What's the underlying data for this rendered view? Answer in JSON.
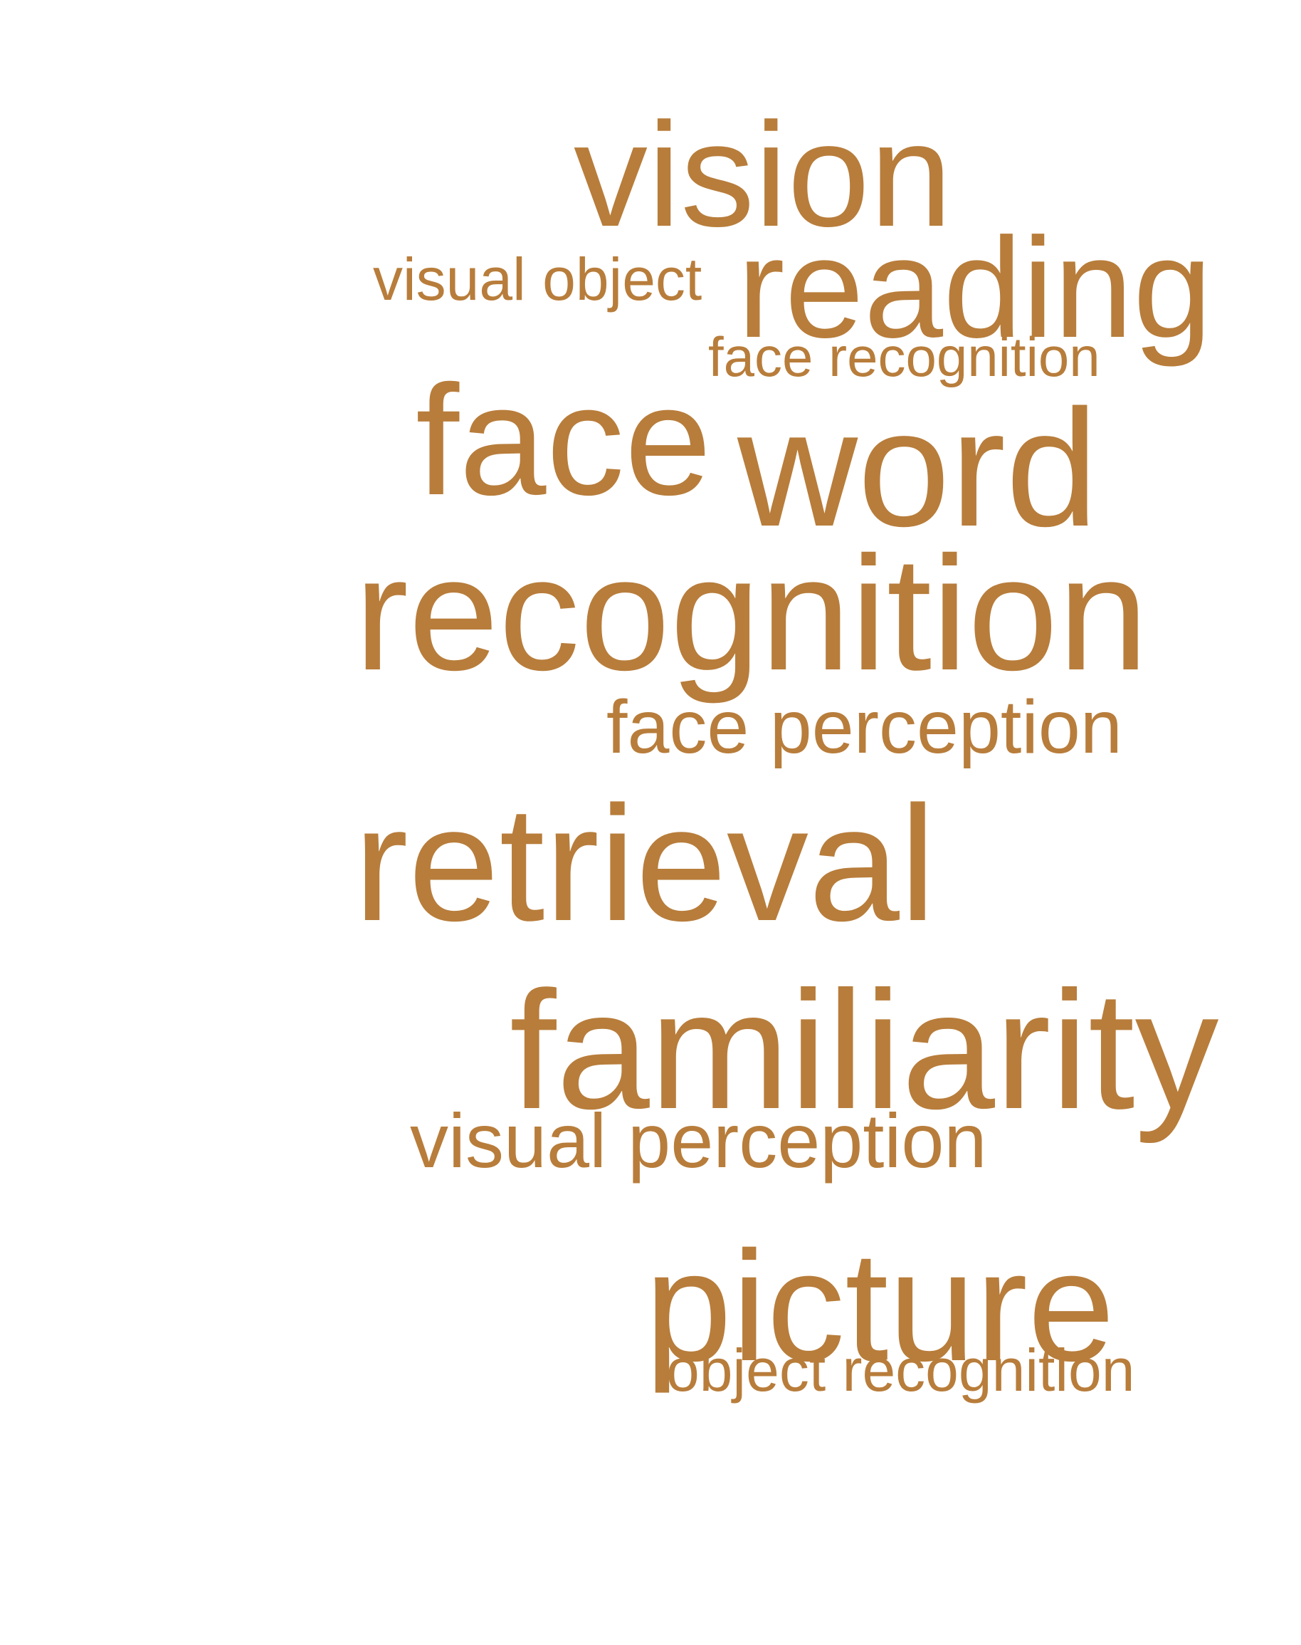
{
  "cloud": {
    "color": "#b87d3b",
    "words": {
      "vision": "vision",
      "visual_object": "visual object",
      "reading": "reading",
      "face_recognition": "face recognition",
      "face": "face",
      "word": "word",
      "recognition": "recognition",
      "face_perception": "face perception",
      "retrieval": "retrieval",
      "familiarity": "familiarity",
      "visual_perception": "visual perception",
      "picture": "picture",
      "object_recognition": "object recognition"
    }
  }
}
